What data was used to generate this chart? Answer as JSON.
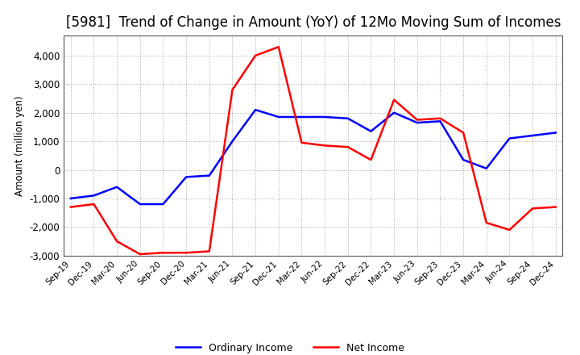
{
  "title": "[5981]  Trend of Change in Amount (YoY) of 12Mo Moving Sum of Incomes",
  "ylabel": "Amount (million yen)",
  "x_labels": [
    "Sep-19",
    "Dec-19",
    "Mar-20",
    "Jun-20",
    "Sep-20",
    "Dec-20",
    "Mar-21",
    "Jun-21",
    "Sep-21",
    "Dec-21",
    "Mar-22",
    "Jun-22",
    "Sep-22",
    "Dec-22",
    "Mar-23",
    "Jun-23",
    "Sep-23",
    "Dec-23",
    "Mar-24",
    "Jun-24",
    "Sep-24",
    "Dec-24"
  ],
  "ordinary_income": [
    -1000,
    -900,
    -600,
    -1200,
    -1200,
    -250,
    -200,
    1000,
    2100,
    1850,
    1850,
    1850,
    1800,
    1350,
    2000,
    1650,
    1700,
    350,
    50,
    1100,
    1200,
    1300
  ],
  "net_income": [
    -1300,
    -1200,
    -2500,
    -2950,
    -2900,
    -2900,
    -2850,
    2800,
    4000,
    4300,
    950,
    850,
    800,
    350,
    2450,
    1750,
    1800,
    1300,
    -1850,
    -2100,
    -1350,
    -1300
  ],
  "ordinary_income_color": "#0000ff",
  "net_income_color": "#ff0000",
  "ylim": [
    -3000,
    4700
  ],
  "yticks": [
    -3000,
    -2000,
    -1000,
    0,
    1000,
    2000,
    3000,
    4000
  ],
  "background_color": "#ffffff",
  "grid_color": "#aaaaaa",
  "title_fontsize": 12,
  "legend_labels": [
    "Ordinary Income",
    "Net Income"
  ]
}
